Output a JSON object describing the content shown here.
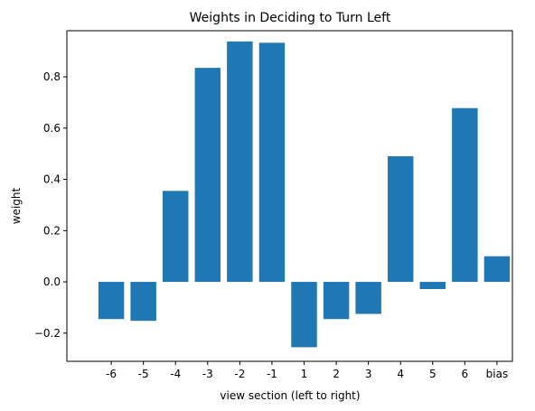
{
  "chart_data": {
    "type": "bar",
    "title": "Weights in Deciding to Turn Left",
    "xlabel": "view section (left to right)",
    "ylabel": "weight",
    "categories": [
      "-6",
      "-5",
      "-4",
      "-3",
      "-2",
      "-1",
      "1",
      "2",
      "3",
      "4",
      "5",
      "6",
      "bias"
    ],
    "values": [
      -0.145,
      -0.152,
      0.355,
      0.835,
      0.938,
      0.933,
      -0.255,
      -0.145,
      -0.125,
      0.49,
      -0.028,
      0.678,
      0.1
    ],
    "ylim": [
      -0.31,
      0.98
    ],
    "yticks": [
      -0.2,
      0.0,
      0.2,
      0.4,
      0.6,
      0.8
    ],
    "ytick_labels": [
      "−0.2",
      "0.0",
      "0.2",
      "0.4",
      "0.6",
      "0.8"
    ],
    "bar_color": "#1f77b4",
    "grid": false,
    "legend": false
  }
}
